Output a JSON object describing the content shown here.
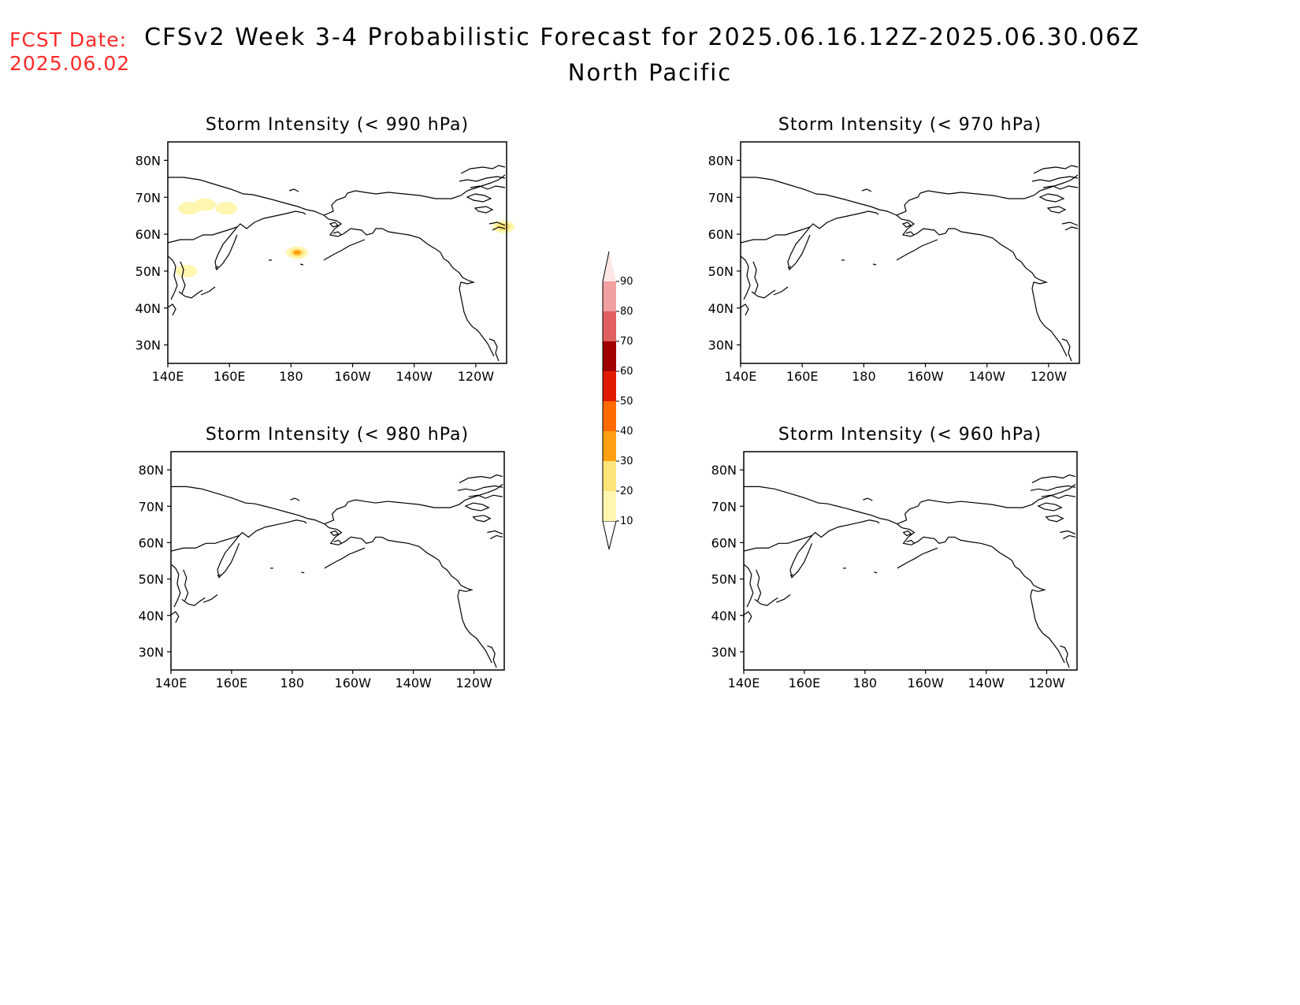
{
  "header": {
    "fcst_label_line1": "FCST Date:",
    "fcst_label_line2": "2025.06.02",
    "title": "CFSv2 Week 3-4 Probabilistic Forecast for 2025.06.16.12Z-2025.06.30.06Z",
    "region": "North Pacific"
  },
  "colors": {
    "fcst_text": "#ff2a2a",
    "land_outline": "#000000"
  },
  "chart_data": [
    {
      "type": "heatmap",
      "panel": "top-left",
      "title": "Storm Intensity (< 990 hPa)",
      "xlim": [
        "140E",
        "110W"
      ],
      "ylim": [
        "25N",
        "85N"
      ],
      "x_ticks": [
        "140E",
        "160E",
        "180",
        "160W",
        "140W",
        "120W"
      ],
      "y_ticks": [
        "80N",
        "70N",
        "60N",
        "50N",
        "40N",
        "30N"
      ],
      "probability_patches": [
        {
          "lon": "178W",
          "lat": "55N",
          "max_bin": "30-40"
        },
        {
          "lon": "146E",
          "lat": "50N",
          "max_bin": "10-20"
        },
        {
          "lon": "111W",
          "lat": "62N",
          "max_bin": "20-30"
        },
        {
          "lon": "147E",
          "lat": "67N",
          "max_bin": "10-20"
        },
        {
          "lon": "152E",
          "lat": "68N",
          "max_bin": "10-20"
        },
        {
          "lon": "159E",
          "lat": "67N",
          "max_bin": "10-20"
        }
      ]
    },
    {
      "type": "heatmap",
      "panel": "top-right",
      "title": "Storm Intensity (< 970 hPa)",
      "x_ticks": [
        "140E",
        "160E",
        "180",
        "160W",
        "140W",
        "120W"
      ],
      "y_ticks": [
        "80N",
        "70N",
        "60N",
        "50N",
        "40N",
        "30N"
      ],
      "probability_patches": []
    },
    {
      "type": "heatmap",
      "panel": "bottom-left",
      "title": "Storm Intensity (< 980 hPa)",
      "x_ticks": [
        "140E",
        "160E",
        "180",
        "160W",
        "140W",
        "120W"
      ],
      "y_ticks": [
        "80N",
        "70N",
        "60N",
        "50N",
        "40N",
        "30N"
      ],
      "probability_patches": []
    },
    {
      "type": "heatmap",
      "panel": "bottom-right",
      "title": "Storm Intensity (< 960 hPa)",
      "x_ticks": [
        "140E",
        "160E",
        "180",
        "160W",
        "140W",
        "120W"
      ],
      "y_ticks": [
        "80N",
        "70N",
        "60N",
        "50N",
        "40N",
        "30N"
      ],
      "probability_patches": []
    }
  ],
  "colorbar": {
    "levels": [
      "10",
      "20",
      "30",
      "40",
      "50",
      "60",
      "70",
      "80",
      "90"
    ],
    "colors": [
      "#fff6b0",
      "#ffe47a",
      "#ffa010",
      "#ff6a00",
      "#e21a00",
      "#a00000",
      "#e06060",
      "#f0a0a0",
      "#ffe6e6"
    ]
  }
}
